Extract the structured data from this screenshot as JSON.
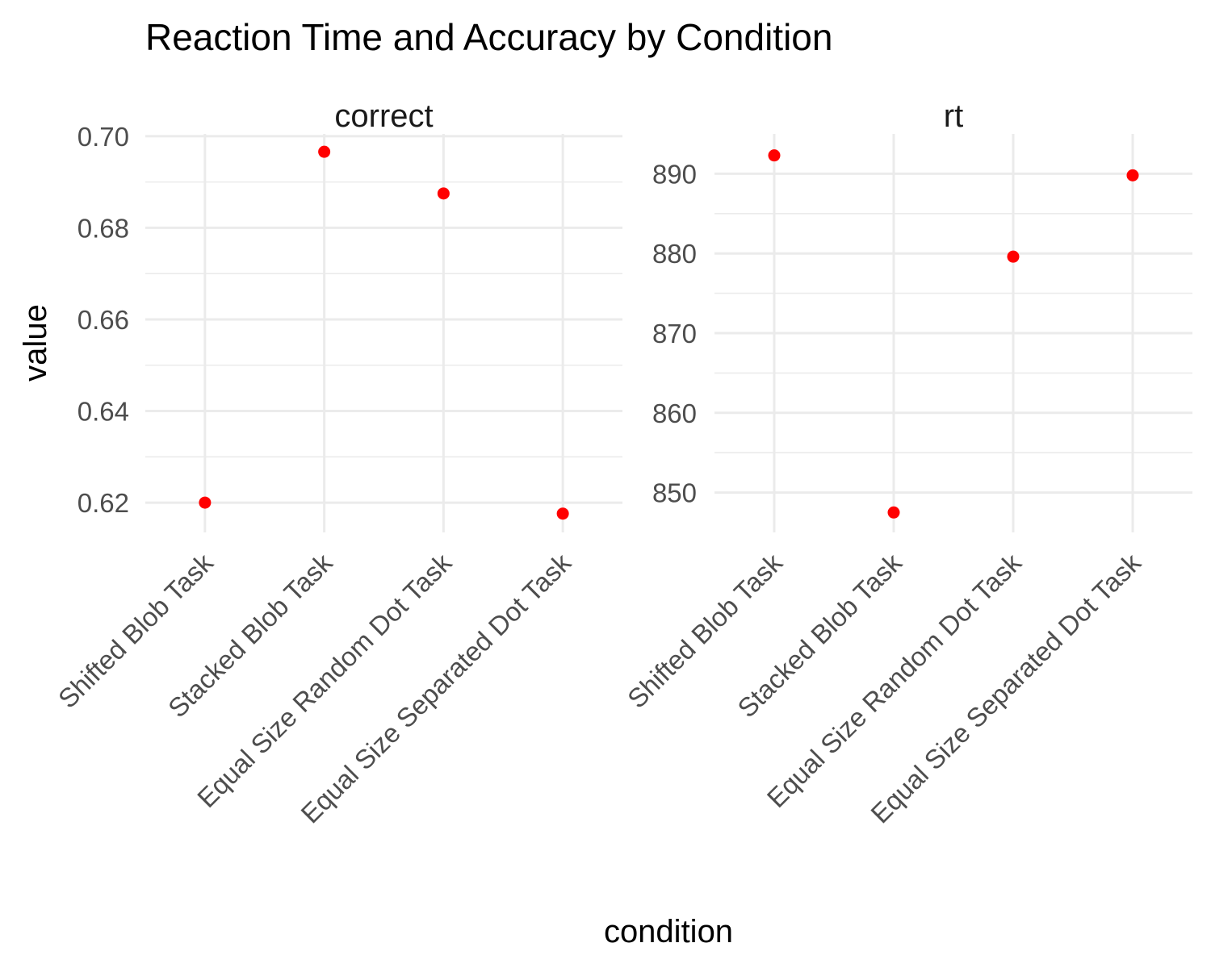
{
  "chart_data": {
    "type": "scatter",
    "title": "Reaction Time and Accuracy by Condition",
    "xlabel": "condition",
    "ylabel": "value",
    "categories": [
      "Shifted Blob Task",
      "Stacked Blob Task",
      "Equal Size Random Dot Task",
      "Equal Size Separated Dot Task"
    ],
    "point_color": "#ff0000",
    "facets": [
      {
        "name": "correct",
        "values": [
          0.62,
          0.6966,
          0.6875,
          0.6176
        ],
        "ylim": [
          0.6135,
          0.7005
        ],
        "yticks": [
          0.62,
          0.64,
          0.66,
          0.68,
          0.7
        ],
        "ytick_labels": [
          "0.62",
          "0.64",
          "0.66",
          "0.68",
          "0.70"
        ]
      },
      {
        "name": "rt",
        "values": [
          892.3,
          847.5,
          879.6,
          889.8
        ],
        "ylim": [
          845.0,
          895.0
        ],
        "yticks": [
          850,
          860,
          870,
          880,
          890
        ],
        "ytick_labels": [
          "850",
          "860",
          "870",
          "880",
          "890"
        ]
      }
    ],
    "grid": true,
    "legend": "none"
  }
}
